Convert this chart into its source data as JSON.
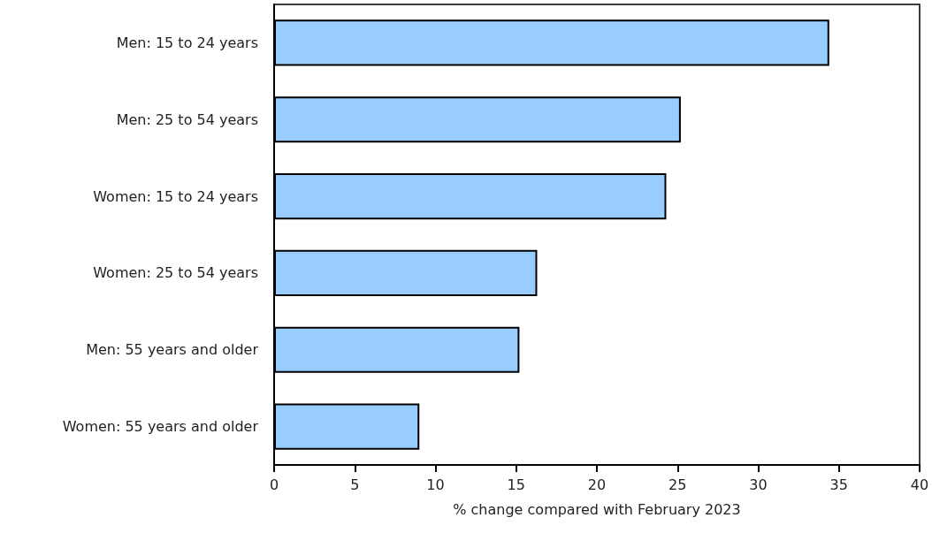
{
  "chart_data": {
    "type": "bar",
    "orientation": "horizontal",
    "xlabel": "% change compared with February 2023",
    "categories": [
      "Men: 15 to 24 years",
      "Men: 25 to 54 years",
      "Women: 15 to 24 years",
      "Women: 25 to 54 years",
      "Men: 55 years and older",
      "Women: 55 years and older"
    ],
    "values": [
      34.4,
      25.2,
      24.3,
      16.3,
      15.2,
      9.0
    ],
    "color": "#99ccff",
    "xlim": [
      0,
      40
    ],
    "xticks": [
      0,
      5,
      10,
      15,
      20,
      25,
      30,
      35,
      40
    ],
    "grid": false
  }
}
